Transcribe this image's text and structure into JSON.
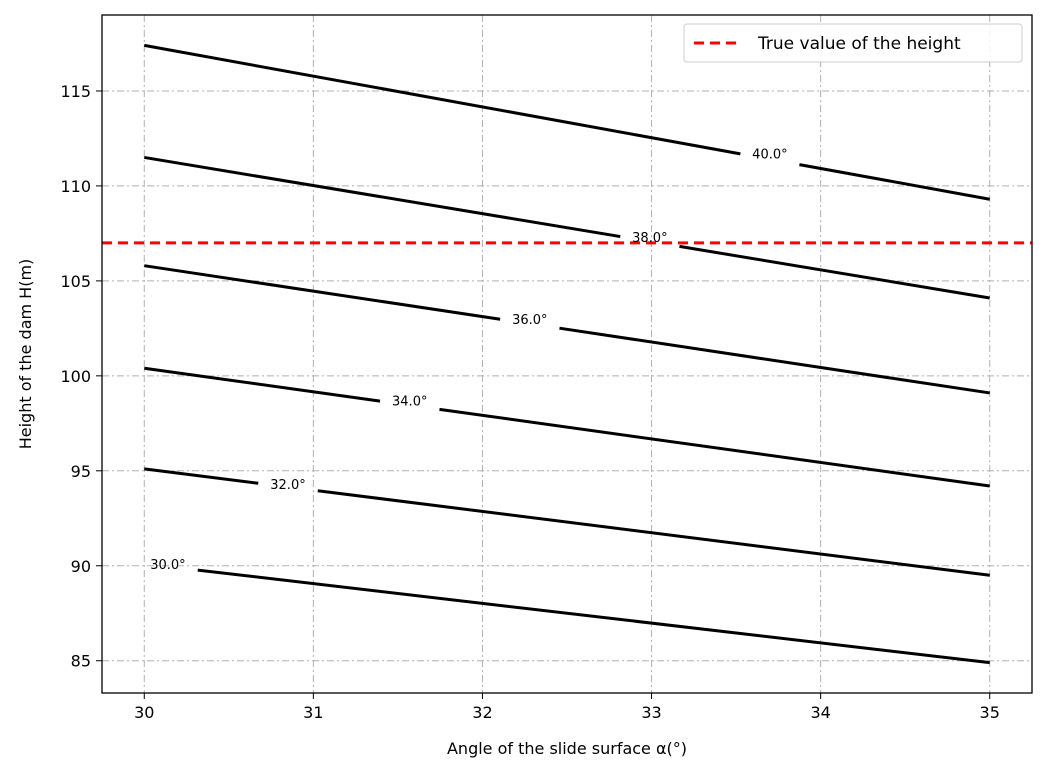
{
  "chart_data": {
    "type": "line",
    "title": "",
    "xlabel": "Angle of the slide surface α(°)",
    "ylabel": "Height of the dam H(m)",
    "xlim": [
      29.75,
      35.25
    ],
    "ylim": [
      83.3,
      119.0
    ],
    "xticks": [
      30,
      31,
      32,
      33,
      34,
      35
    ],
    "yticks": [
      85,
      90,
      95,
      100,
      105,
      110,
      115
    ],
    "grid": true,
    "legend_position": "top-right",
    "series": [
      {
        "label": "30.0°",
        "x": [
          30,
          35
        ],
        "y": [
          90.1,
          84.9
        ],
        "label_at": [
          30.14,
          90.1
        ]
      },
      {
        "label": "32.0°",
        "x": [
          30,
          35
        ],
        "y": [
          95.1,
          89.5
        ],
        "label_at": [
          30.85,
          94.3
        ]
      },
      {
        "label": "34.0°",
        "x": [
          30,
          35
        ],
        "y": [
          100.4,
          94.2
        ],
        "label_at": [
          31.57,
          98.7
        ]
      },
      {
        "label": "36.0°",
        "x": [
          30,
          35
        ],
        "y": [
          105.8,
          99.1
        ],
        "label_at": [
          32.28,
          103.0
        ]
      },
      {
        "label": "38.0°",
        "x": [
          30,
          35
        ],
        "y": [
          111.5,
          104.1
        ],
        "label_at": [
          32.99,
          107.3
        ]
      },
      {
        "label": "40.0°",
        "x": [
          30,
          35
        ],
        "y": [
          117.4,
          109.3
        ],
        "label_at": [
          33.7,
          111.7
        ]
      }
    ],
    "reference_line": {
      "name": "True value of the height",
      "y": 107.0,
      "style": "dashed",
      "color": "#ff0000"
    },
    "colors": {
      "contour": "#000000",
      "reference": "#ff0000",
      "grid": "#b0b0b0"
    }
  }
}
